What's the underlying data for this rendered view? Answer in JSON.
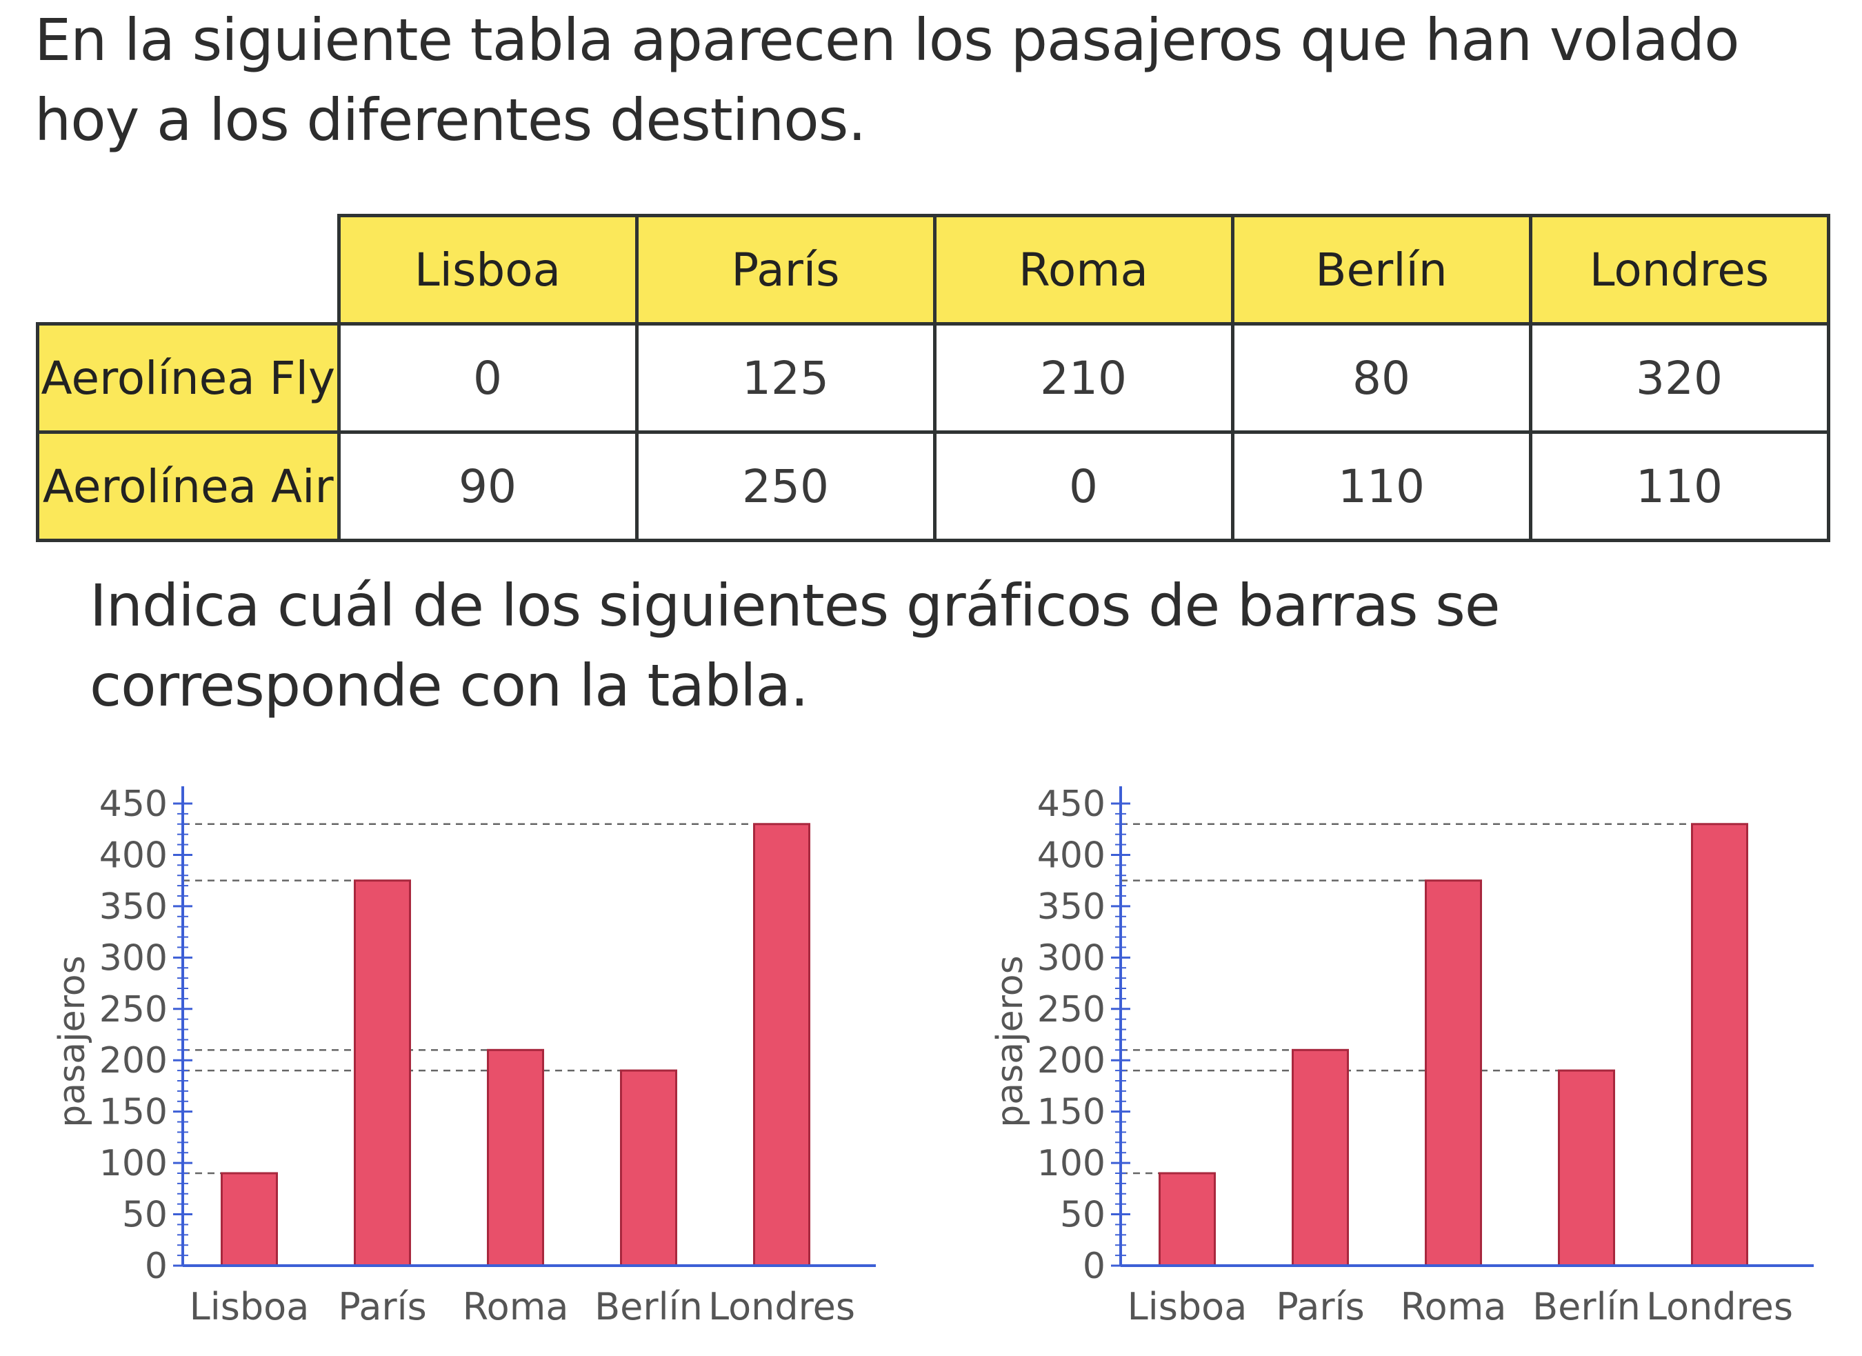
{
  "intro_text": "En la siguiente tabla aparecen los pasajeros que han volado hoy a los diferentes destinos.",
  "question_text": "Indica cuál de los siguientes gráficos de barras se corresponde con la tabla.",
  "table": {
    "columns": [
      "Lisboa",
      "París",
      "Roma",
      "Berlín",
      "Londres"
    ],
    "rows": [
      {
        "label": "Aerolínea Fly",
        "values": [
          "0",
          "125",
          "210",
          "80",
          "320"
        ]
      },
      {
        "label": "Aerolínea Air",
        "values": [
          "90",
          "250",
          "0",
          "110",
          "110"
        ]
      }
    ],
    "header_color": "#fbe85a"
  },
  "chart_data": [
    {
      "type": "bar",
      "categories": [
        "Lisboa",
        "París",
        "Roma",
        "Berlín",
        "Londres"
      ],
      "values": [
        90,
        375,
        210,
        190,
        430
      ],
      "ylabel": "pasajeros",
      "ylim": [
        0,
        450
      ],
      "yticks": [
        "0",
        "50",
        "100",
        "150",
        "200",
        "250",
        "300",
        "350",
        "400",
        "450"
      ],
      "bar_color": "#e8506a",
      "axis_color": "#3d5fd6"
    },
    {
      "type": "bar",
      "categories": [
        "Lisboa",
        "París",
        "Roma",
        "Berlín",
        "Londres"
      ],
      "values": [
        90,
        210,
        375,
        190,
        430
      ],
      "ylabel": "pasajeros",
      "ylim": [
        0,
        450
      ],
      "yticks": [
        "0",
        "50",
        "100",
        "150",
        "200",
        "250",
        "300",
        "350",
        "400",
        "450"
      ],
      "bar_color": "#e8506a",
      "axis_color": "#3d5fd6"
    }
  ]
}
